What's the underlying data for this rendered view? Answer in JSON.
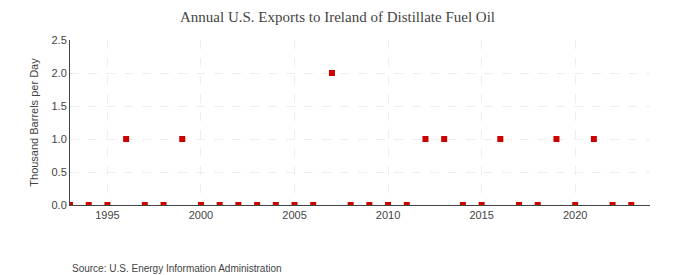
{
  "chart_data": {
    "type": "scatter",
    "title": "Annual U.S. Exports to Ireland of Distillate Fuel Oil",
    "ylabel": "Thousand Barrels per Day",
    "annotations": [
      "Source: U.S. Energy Information Administration"
    ],
    "x": [
      1993,
      1994,
      1995,
      1996,
      1997,
      1998,
      1999,
      2000,
      2001,
      2002,
      2003,
      2004,
      2005,
      2006,
      2007,
      2008,
      2009,
      2010,
      2011,
      2012,
      2013,
      2014,
      2015,
      2016,
      2017,
      2018,
      2019,
      2020,
      2021,
      2022,
      2023
    ],
    "values": [
      0,
      0,
      0,
      1.0,
      0,
      0,
      1.0,
      0,
      0,
      0,
      0,
      0,
      0,
      0,
      2.0,
      0,
      0,
      0,
      0,
      1.0,
      1.0,
      0,
      0,
      1.0,
      0,
      0,
      1.0,
      0,
      1.0,
      0,
      0
    ],
    "color": "#cc0000",
    "marker": "square",
    "xlim": [
      1993,
      2024
    ],
    "ylim": [
      0.0,
      2.5
    ],
    "xticks": [
      1995,
      2000,
      2005,
      2010,
      2015,
      2020
    ],
    "yticks": [
      {
        "value": 0.0,
        "label": "0.0"
      },
      0.5,
      {
        "value": 1.0,
        "label": "1.0"
      },
      1.5,
      {
        "value": 2.0,
        "label": "2.0"
      },
      2.5
    ],
    "grid": true
  }
}
